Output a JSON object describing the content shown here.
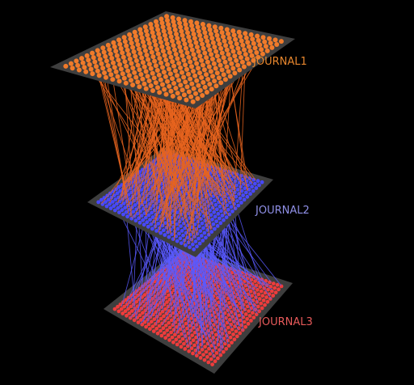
{
  "layers": [
    {
      "label": "JOURNAL1",
      "color": "#e8872e",
      "node_color": "#f07a2a",
      "panel_color": "#3e3e3e"
    },
    {
      "label": "JOURNAL2",
      "color": "#8f8fe6",
      "node_color": "#4848ff",
      "panel_color": "#3e3e3e"
    },
    {
      "label": "JOURNAL3",
      "color": "#e85a5a",
      "node_color": "#ee3c3c",
      "panel_color": "#3e3e3e"
    }
  ],
  "edge_colors": {
    "layer1_to_layer2": "#e8641e",
    "layer2_to_layer3": "#5a5aff"
  }
}
